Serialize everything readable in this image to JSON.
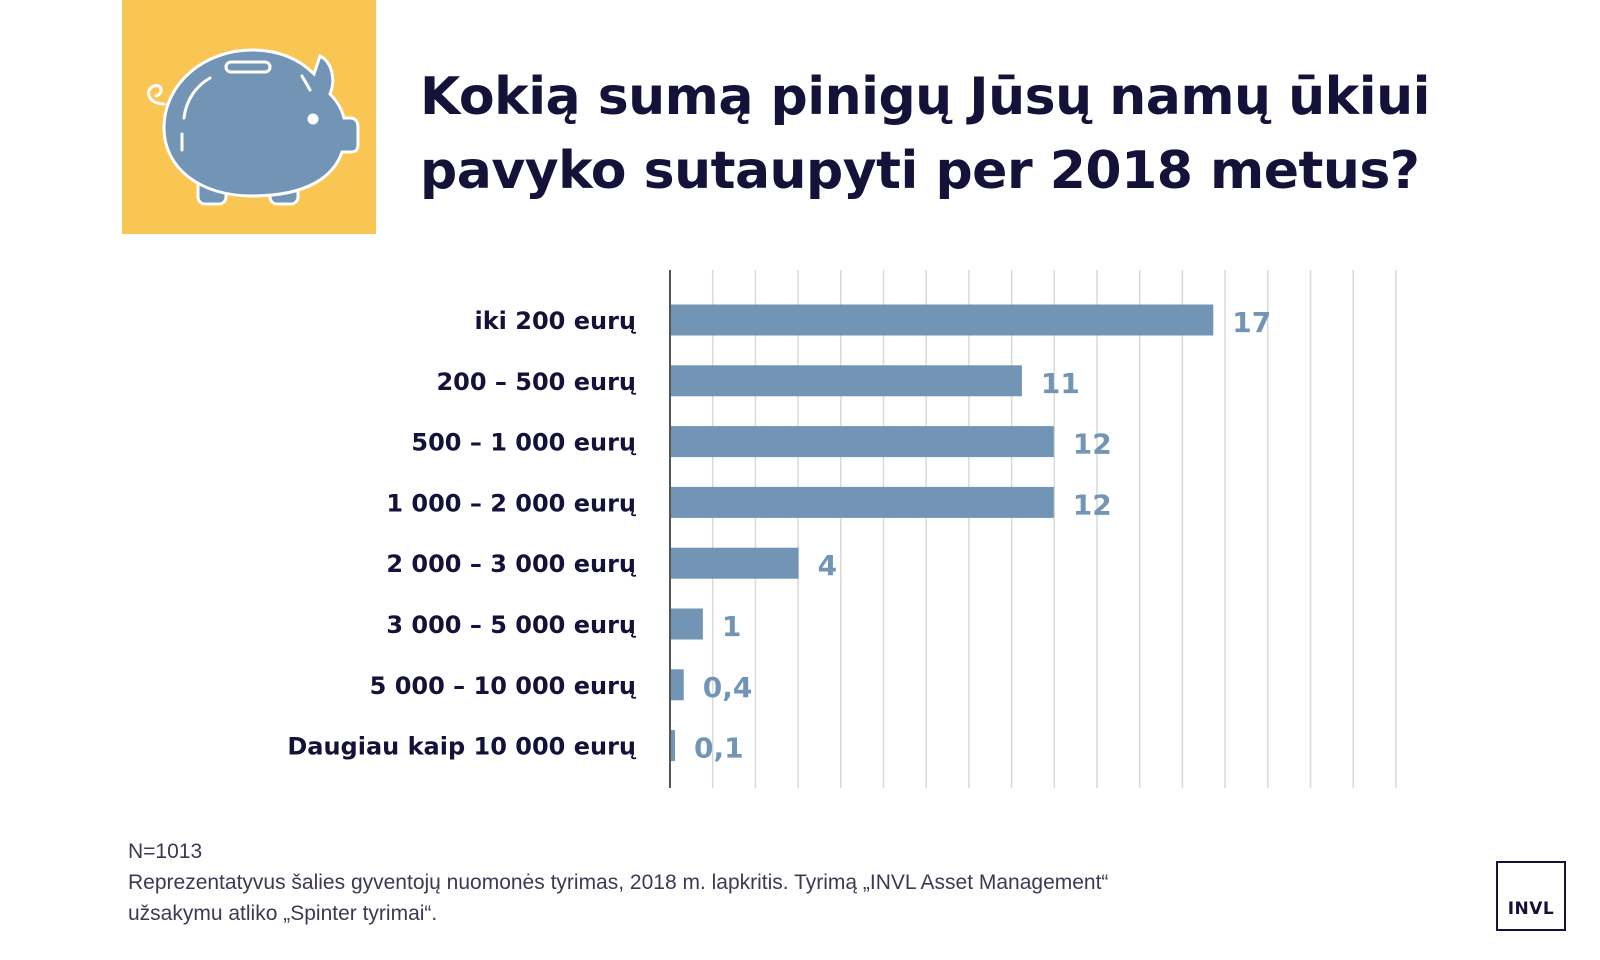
{
  "title_line1": "Kokią sumą pinigų Jūsų namų ūkiui",
  "title_line2": "pavyko sutaupyti per 2018 metus?",
  "icon": "piggy-bank-icon",
  "colors": {
    "bar": "#7295b6",
    "label": "#141238",
    "value": "#7295b6",
    "icon_bg": "#f9c553",
    "grid": "#d9d9d9"
  },
  "chart_data": {
    "type": "bar",
    "orientation": "horizontal",
    "categories": [
      "iki 200 eurų",
      "200 – 500 eurų",
      "500 – 1 000 eurų",
      "1 000 – 2 000 eurų",
      "2 000 – 3 000 eurų",
      "3 000 – 5 000 eurų",
      "5 000 – 10 000 eurų",
      "Daugiau kaip 10 000 eurų"
    ],
    "values": [
      17,
      11,
      12,
      12,
      4,
      1,
      0.4,
      0.1
    ],
    "value_labels": [
      "17",
      "11",
      "12",
      "12",
      "4",
      "1",
      "0,4",
      "0,1"
    ],
    "xlim": [
      0,
      20
    ],
    "grid": true,
    "gridline_step": 1
  },
  "footnote": {
    "n": "N=1013",
    "line1": "Reprezentatyvus šalies gyventojų nuomonės tyrimas, 2018 m. lapkritis. Tyrimą „INVL Asset Management“",
    "line2": "užsakymu atliko „Spinter tyrimai“."
  },
  "logo_text": "INVL"
}
